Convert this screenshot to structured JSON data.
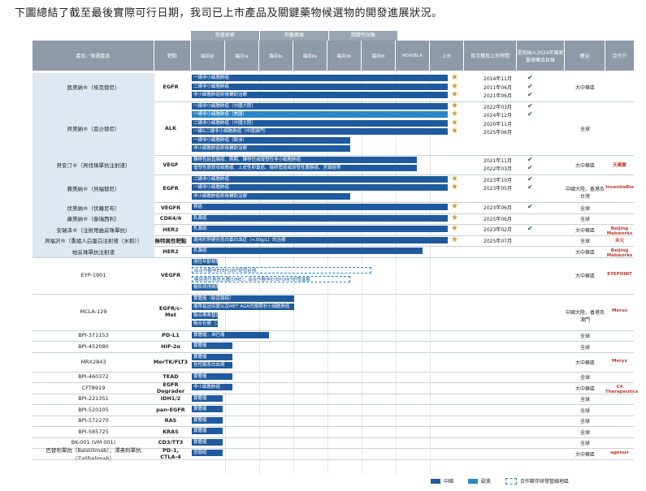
{
  "intro": "下圖總結了截至最後實際可行日期，我司已上市產品及關鍵藥物候選物的開發進展狀況。",
  "header": {
    "groups": [
      "劑量探索",
      "劑量擴展",
      "關鍵性試驗"
    ],
    "drug": "產品／候選產品",
    "target": "靶點",
    "phases": [
      "臨床前",
      "臨床Ia",
      "臨床Ib",
      "臨床IIa",
      "臨床IIb",
      "臨床III",
      "NDA/BLA",
      "上市"
    ],
    "first_approval": "首次獲批上市時間",
    "nrdl": "是否納入2024年國家醫保藥品目錄",
    "rights": "權益",
    "partner": "合作方"
  },
  "rows": [
    {
      "drug": "凱美納®（埃克替尼）",
      "target": "EGFR",
      "bars": [
        {
          "text": "一線非小細胞肺癌",
          "w": 1.0
        },
        {
          "text": "二線非小細胞肺癌",
          "w": 1.0
        },
        {
          "text": "非小細胞肺癌術後輔助治療",
          "w": 1.0
        }
      ],
      "dates": [
        "2014年11月",
        "2011年06月",
        "2021年06月"
      ],
      "checks": 3,
      "rights": "大中華區",
      "partner": ""
    },
    {
      "drug": "貝美納®（恩沙替尼）",
      "target": "ALK",
      "bars": [
        {
          "text": "一線非小細胞肺癌（中國大陸）",
          "w": 1.0
        },
        {
          "text": "一線非小細胞肺癌（美國）",
          "w": 1.0,
          "us": true
        },
        {
          "text": "二線非小細胞肺癌（中國大陸）",
          "w": 1.0
        },
        {
          "text": "一線&二線非小細胞肺癌（中國澳門）",
          "w": 1.0
        },
        {
          "text": "一線非小細胞肺癌（歐洲）",
          "w": 0.62
        },
        {
          "text": "非小細胞肺癌術後輔助治療",
          "w": 0.62
        }
      ],
      "dates": [
        "2022年03月",
        "2024年12月",
        "2020年11月",
        "2025年06月"
      ],
      "checks": 2,
      "rights": "全球",
      "partner": ""
    },
    {
      "drug": "貝安汀®（貝伐珠單抗注射液）",
      "target": "VEGF",
      "bars": [
        {
          "text": "轉移性結直腸癌、晚期、轉移性或復發性非小細胞肺癌",
          "w": 0.88
        },
        {
          "text": "復發性膠質母細胞瘤、上皮性卵巢癌、輸卵管癌或原發性腹膜癌、宮頸癌等",
          "w": 0.88
        }
      ],
      "dates": [
        "2021年11月",
        "2022年03月"
      ],
      "checks": 2,
      "rights": "大中華區",
      "partner": "天廣實"
    },
    {
      "drug": "賽美納®（貝福替尼）",
      "target": "EGFR",
      "bars": [
        {
          "text": "二線非小細胞肺癌",
          "w": 1.0
        },
        {
          "text": "一線非小細胞肺癌",
          "w": 1.0
        },
        {
          "text": "非小細胞肺癌術後輔助治療",
          "w": 0.62
        }
      ],
      "dates": [
        "2023年10月",
        "2023年05月"
      ],
      "checks": 2,
      "rights": "中國大陸、香港及台灣",
      "partner": "InventisBio"
    },
    {
      "drug": "伏美納®（伏羅尼布）",
      "target": "VEGFR",
      "bars": [
        {
          "text": "腎癌",
          "w": 1.0
        }
      ],
      "dates": [
        "2023年06月"
      ],
      "checks": 1,
      "rights": "全球",
      "partner": ""
    },
    {
      "drug": "康美納®（泰瑞西利）",
      "target": "CDK4/6",
      "bars": [
        {
          "text": "乳腺癌",
          "w": 1.0
        }
      ],
      "dates": [
        "2025年06月"
      ],
      "checks": 0,
      "rights": "全球",
      "partner": ""
    },
    {
      "drug": "安瑞泽®（注射用曲妥珠單抗）",
      "target": "HER2",
      "bars": [
        {
          "text": "乳腺癌",
          "w": 1.0
        }
      ],
      "dates": [
        "2023年02月"
      ],
      "checks": 1,
      "rights": "大中華區",
      "partner": "Beijing Mabworks"
    },
    {
      "drug": "貝福沢®（重組人白蛋白注射液（水稻））",
      "target": "無特異性靶點",
      "bars": [
        {
          "text": "適用於肝硬化低白蛋白血症（<30g/L）的治療",
          "w": 1.0
        }
      ],
      "dates": [
        "2025年07月"
      ],
      "checks": 0,
      "rights": "全球",
      "partner": "禾元"
    },
    {
      "drug": "帕妥珠單抗注射液",
      "target": "HER2",
      "bars": [
        {
          "text": "乳腺癌",
          "w": 0.9
        }
      ],
      "dates": [],
      "checks": 0,
      "rights": "大中華區",
      "partner": "Beijing Mabworks"
    },
    {
      "drug": "EYP-1901",
      "target": "VEGFR",
      "bars": [
        {
          "text": "濕性年齡相關性黃斑變性(wAMD)",
          "w": 0.1
        },
        {
          "text": "由合作夥伴EYEPOINT研發註冊",
          "w": 0.7,
          "dash": true
        },
        {
          "text": "糖尿病性黃斑水腫(DME)；由合作夥伴EYEPOINT研發進展",
          "w": 0.62,
          "dash": true
        },
        {
          "text": "糖尿病視網膜病變伴非增殖(npdrNV)",
          "w": 0.1
        }
      ],
      "dates": [],
      "checks": 0,
      "rights": "大中華區",
      "partner": "EYEPOINT"
    },
    {
      "drug": "MCLA-129",
      "target": "EGFR/c-Met",
      "bars": [
        {
          "text": "實體瘤（結直腸癌）",
          "w": 0.4
        },
        {
          "text": "攜帶基因突變以及MET AGA的晚期非小細胞肺癌",
          "w": 0.4
        },
        {
          "text": "聯合奧希替尼（一線治療）",
          "w": 0.1
        },
        {
          "text": "聯合化療（二線治療）",
          "w": 0.1
        }
      ],
      "dates": [],
      "checks": 0,
      "rights": "中國大陸、香港及澳門",
      "partner": "Merus"
    },
    {
      "drug": "BPI-371153",
      "target": "PD-L1",
      "bars": [
        {
          "text": "實體瘤；淋巴瘤",
          "w": 0.3
        }
      ],
      "dates": [],
      "checks": 0,
      "rights": "全球",
      "partner": ""
    },
    {
      "drug": "BPI-452080",
      "target": "HIF-2α",
      "bars": [
        {
          "text": "實體瘤",
          "w": 0.16
        }
      ],
      "dates": [],
      "checks": 0,
      "rights": "全球",
      "partner": ""
    },
    {
      "drug": "MRX2843",
      "target": "MerTK/FLT3",
      "bars": [
        {
          "text": "實體瘤",
          "w": 0.16
        },
        {
          "text": "急性髓系白血病",
          "w": 0.16
        }
      ],
      "dates": [],
      "checks": 0,
      "rights": "大中華區",
      "partner": "Meryx"
    },
    {
      "drug": "BPI-460372",
      "target": "TEAD",
      "bars": [
        {
          "text": "實體瘤",
          "w": 0.16
        }
      ],
      "dates": [],
      "checks": 0,
      "rights": "全球",
      "partner": ""
    },
    {
      "drug": "CFT8919",
      "target": "EGFR Degrader",
      "bars": [
        {
          "text": "非小細胞肺癌",
          "w": 0.16
        }
      ],
      "dates": [],
      "checks": 0,
      "rights": "大中華區",
      "partner": "C4 Therapeutics"
    },
    {
      "drug": "BPI-221351",
      "target": "IDH1/2",
      "bars": [
        {
          "text": "實體瘤",
          "w": 0.12
        }
      ],
      "dates": [],
      "checks": 0,
      "rights": "全球",
      "partner": ""
    },
    {
      "drug": "BPI-520105",
      "target": "pan-EGFR",
      "bars": [
        {
          "text": "實體瘤",
          "w": 0.12
        }
      ],
      "dates": [],
      "checks": 0,
      "rights": "全球",
      "partner": ""
    },
    {
      "drug": "BPI-572270",
      "target": "RAS",
      "bars": [
        {
          "text": "實體瘤",
          "w": 0.12
        }
      ],
      "dates": [],
      "checks": 0,
      "rights": "全球",
      "partner": ""
    },
    {
      "drug": "BPI-585725",
      "target": "KRAS",
      "bars": [
        {
          "text": "實體瘤",
          "w": 0.12
        }
      ],
      "dates": [],
      "checks": 0,
      "rights": "全球",
      "partner": ""
    },
    {
      "drug": "BK-001 (VM 001)",
      "target": "CD3/TT3",
      "bars": [
        {
          "text": "實體瘤",
          "w": 0.12
        }
      ],
      "dates": [],
      "checks": 0,
      "rights": "全球",
      "partner": ""
    },
    {
      "drug": "巴替利單抗（Balstilimab）、澤弗利單抗（Zalifrelimab）",
      "target": "PD-1, CTLA-4",
      "bars": [
        {
          "text": "宮頸癌",
          "w": 0.12
        }
      ],
      "dates": [],
      "checks": 0,
      "rights": "大中華區",
      "partner": "agenus"
    }
  ],
  "legend": [
    "中國",
    "歐美",
    "合作夥伴研發管線地區"
  ],
  "colors": {
    "china": "#1f5a9e",
    "us": "#2b86c5",
    "header": "#8e9aa7",
    "star": "#c9a23c"
  }
}
